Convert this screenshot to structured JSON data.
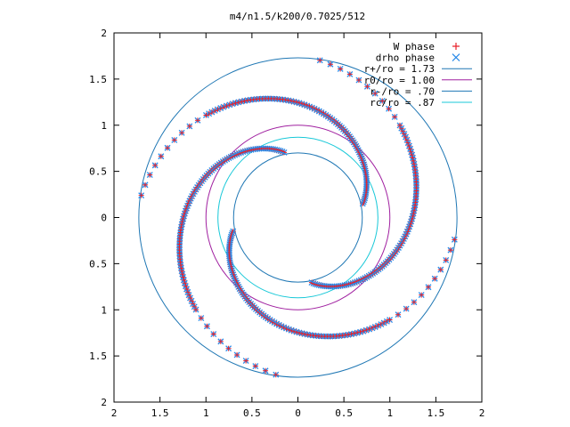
{
  "chart_data": {
    "type": "scatter",
    "title": "m4/n1.5/k200/0.7025/512",
    "xlabel": "",
    "ylabel": "",
    "xlim": [
      2,
      -2
    ],
    "ylim": [
      -2,
      2
    ],
    "x_tick_labels": [
      "2",
      "1.5",
      "1",
      "0.5",
      "0",
      "0.5",
      "1",
      "1.5",
      "2"
    ],
    "y_tick_labels": [
      "2",
      "1.5",
      "1",
      "0.5",
      "0",
      "0.5",
      "1",
      "1.5",
      "2"
    ],
    "grid": false,
    "legend_position": "top-right",
    "series": [
      {
        "name": "W phase",
        "marker": "plus",
        "color": "#e8202a",
        "structure": "four trailing spiral arms plus scattered outer points"
      },
      {
        "name": "drho phase",
        "marker": "x",
        "color": "#2a8ae8",
        "structure": "four trailing spiral arms plus scattered outer points"
      }
    ],
    "circles": [
      {
        "name": "r+/ro = 1.73",
        "radius": 1.73,
        "color": "#1f77b4"
      },
      {
        "name": "r0/ro = 1.00",
        "radius": 1.0,
        "color": "#a020a0"
      },
      {
        "name": "r-/ro = .70",
        "radius": 0.7,
        "color": "#1f77b4"
      },
      {
        "name": "rc/ro = .87",
        "radius": 0.87,
        "color": "#18c8d8"
      }
    ],
    "arms": [
      {
        "start_angle_deg": 102,
        "r_start": 0.72,
        "r_end": 1.72,
        "sweep_deg": 160
      },
      {
        "start_angle_deg": 192,
        "r_start": 0.72,
        "r_end": 1.72,
        "sweep_deg": 160
      },
      {
        "start_angle_deg": 282,
        "r_start": 0.72,
        "r_end": 1.72,
        "sweep_deg": 160
      },
      {
        "start_angle_deg": 12,
        "r_start": 0.72,
        "r_end": 1.72,
        "sweep_deg": 160
      }
    ]
  }
}
